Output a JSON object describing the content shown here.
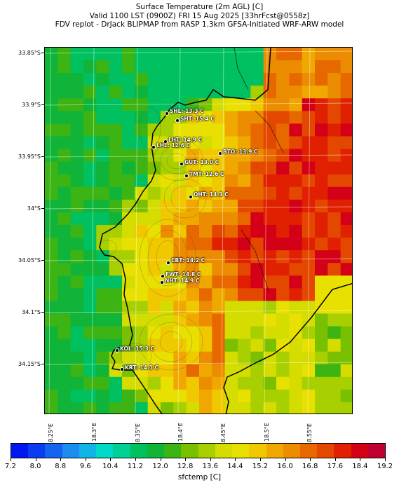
{
  "title": {
    "line1": "Surface Temperature (2m AGL) [C]",
    "line2": "Valid 1100 LST (0900Z) FRI 15 Aug 2025 [33hrFcst@0558z]",
    "line3": "FDV replot - DrJack BLIPMAP from RASP 1.3km GFSA-Initiated WRF-ARW model"
  },
  "lat_labels": [
    "33.85°S",
    "33.9°S",
    "33.95°S",
    "34°S",
    "34.05°S",
    "34.1°S",
    "34.15°S"
  ],
  "lon_labels": [
    "18.25°E",
    "18.3°E",
    "18.35°E",
    "18.4°E",
    "18.45°E",
    "18.5°E",
    "18.55°E"
  ],
  "colorbar": {
    "label": "sfctemp [C]",
    "tick_labels": [
      "7.2",
      "8.0",
      "8.8",
      "9.6",
      "10.4",
      "11.2",
      "12.0",
      "12.8",
      "13.6",
      "14.4",
      "15.2",
      "16.0",
      "16.8",
      "17.6",
      "18.4",
      "19.2"
    ],
    "colors": [
      "#0018f0",
      "#0a3cf2",
      "#1464f0",
      "#1c8cf0",
      "#10b4e6",
      "#00d8c8",
      "#00d094",
      "#00c060",
      "#10b438",
      "#3cb414",
      "#78c000",
      "#a8d000",
      "#d4dc00",
      "#e8e000",
      "#f0c800",
      "#f0a800",
      "#ec8c00",
      "#e86800",
      "#e44800",
      "#e02000",
      "#d40018",
      "#c00030"
    ]
  },
  "sites": [
    {
      "label": "SHL: 13.3 C"
    },
    {
      "label": "SHT: 15.4 C"
    },
    {
      "label": "LHT: 14.9 C"
    },
    {
      "label": "LHL: 12.6 C"
    },
    {
      "label": "BTO: 13.9 C"
    },
    {
      "label": "GUT: 13.0 C"
    },
    {
      "label": "TMT: 12.6 C"
    },
    {
      "label": "OHT: 14.3 C"
    },
    {
      "label": "CBT: 14.2 C"
    },
    {
      "label": "FWT: 14.8 C"
    },
    {
      "label": "NHT: 14.9 C"
    },
    {
      "label": "KOL: 15.3 C"
    },
    {
      "label": "KRT: 14.1 C"
    }
  ]
}
